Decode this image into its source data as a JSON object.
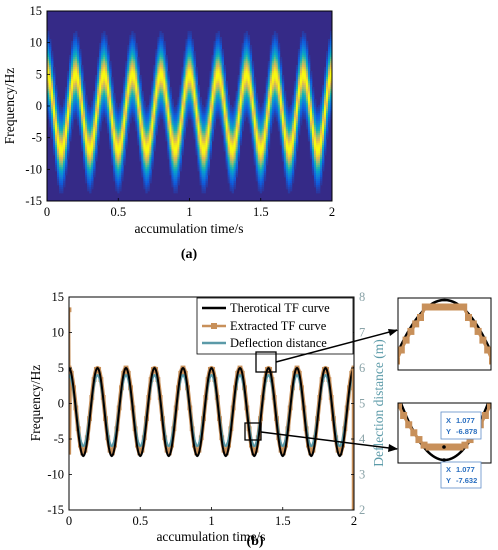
{
  "figure": {
    "caption_a": "(a)",
    "caption_b": "(b)"
  },
  "chart_data": [
    {
      "id": "a",
      "type": "heatmap",
      "title": "",
      "xlabel": "accumulation time/s",
      "ylabel": "Frequency/Hz",
      "xlim": [
        0,
        2
      ],
      "ylim": [
        -15,
        15
      ],
      "xticks": [
        "0",
        "0.5",
        "1",
        "1.5",
        "2"
      ],
      "yticks": [
        "15",
        "10",
        "5",
        "0",
        "-5",
        "-10",
        "-15"
      ],
      "colormap": "parula",
      "ridge": {
        "center_hz": -1,
        "amplitude_hz": 6,
        "cycles": 10,
        "phase": "max at t=0"
      }
    },
    {
      "id": "b",
      "type": "line",
      "xlabel": "accumulation time/s",
      "ylabel": "Frequency/Hz",
      "ylabel_right": "Deflection distance (m)",
      "xlim": [
        0,
        2
      ],
      "ylim": [
        -15,
        15
      ],
      "ylim_right": [
        2,
        8
      ],
      "xticks": [
        "0",
        "0.5",
        "1",
        "1.5",
        "2"
      ],
      "yticks": [
        "15",
        "10",
        "5",
        "0",
        "-5",
        "-10",
        "-15"
      ],
      "yticks_right": [
        "8",
        "7",
        "6",
        "5",
        "4",
        "3",
        "2"
      ],
      "legend_position": "top-right",
      "series": [
        {
          "name": "Therotical TF curve",
          "color": "#000000",
          "center": -1.2,
          "amplitude": 6.2,
          "cycles": 10,
          "axis": "left"
        },
        {
          "name": "Extracted TF curve",
          "color": "#c8905a",
          "center": -1,
          "amplitude": 6,
          "cycles": 10,
          "axis": "left",
          "marker": "square"
        },
        {
          "name": "Deflection distance",
          "color": "#5b9aa8",
          "center": 4.8,
          "amplitude": 1.0,
          "cycles": 10,
          "axis": "right"
        }
      ],
      "insets": [
        {
          "name": "peak-zoom"
        },
        {
          "name": "trough-zoom",
          "datatips": [
            {
              "x_label": "X",
              "x": "1.077",
              "y_label": "Y",
              "y": "-6.878"
            },
            {
              "x_label": "X",
              "x": "1.077",
              "y_label": "Y",
              "y": "-7.632"
            }
          ]
        }
      ]
    }
  ]
}
